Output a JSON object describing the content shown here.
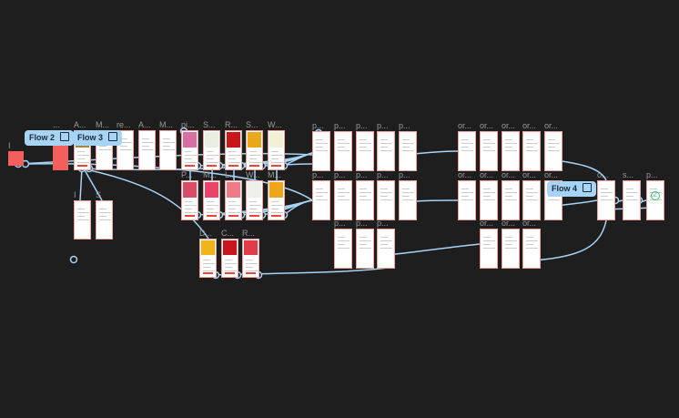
{
  "canvas": {
    "accent": "#a7d3f5",
    "frame_border": "#f0a39a",
    "background": "#1e1e1e"
  },
  "flows": [
    {
      "label": "Flow 2",
      "icon": "play-icon"
    },
    {
      "label": "Flow 3",
      "icon": "play-icon"
    },
    {
      "label": "Flow 4",
      "icon": "play-icon"
    }
  ],
  "frames": {
    "start": {
      "label": "I"
    },
    "red": {
      "label": "..."
    },
    "row1": [
      "A...",
      "M...",
      "re...",
      "A...",
      "M...",
      "pi...",
      "S...",
      "R...",
      "S...",
      "W..."
    ],
    "row2": [
      "P...",
      "M...",
      "L...",
      "W...",
      "M..."
    ],
    "row3": [
      "D...",
      "C...",
      "R..."
    ],
    "sub": [
      "I",
      "S"
    ],
    "p_row1": [
      "p...",
      "p...",
      "p...",
      "p...",
      "p..."
    ],
    "p_row2": [
      "p...",
      "p...",
      "p...",
      "p...",
      "p..."
    ],
    "p_row3": [
      "p...",
      "p...",
      "p..."
    ],
    "or_row1": [
      "or...",
      "or...",
      "or...",
      "or...",
      "or..."
    ],
    "or_row2": [
      "or...",
      "or...",
      "or...",
      "or...",
      "or..."
    ],
    "or_row3": [
      "or...",
      "or...",
      "or..."
    ],
    "final": [
      "o...",
      "s...",
      "p..."
    ]
  }
}
